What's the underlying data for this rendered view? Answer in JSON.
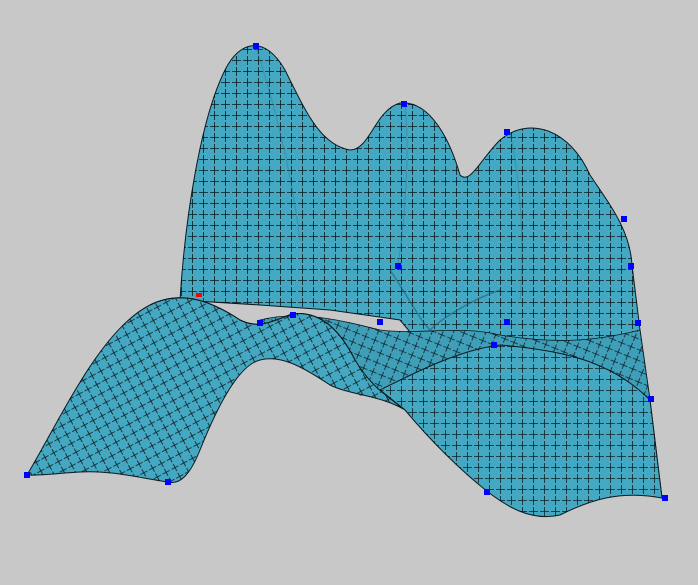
{
  "viewport": {
    "background": "#c8c8c8",
    "surface_color": "#45a8c2",
    "grid_line_color": "#000000",
    "control_point_color": "#0000ff",
    "selected_point_color": "#ff0000"
  },
  "surface": {
    "kind": "bspline-surface",
    "shading": "flat",
    "isoparametric_grid": true
  },
  "control_points": {
    "count": 17,
    "selected_count": 1
  }
}
